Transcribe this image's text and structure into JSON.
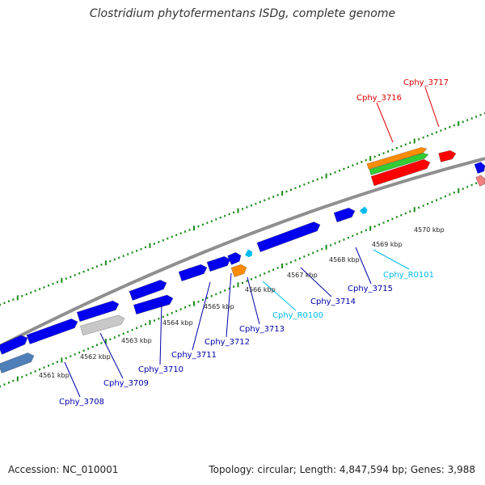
{
  "title": "Clostridium phytofermentans ISDg, complete genome",
  "footer": {
    "accession_label": "Accession: NC_010001",
    "stats_label": "Topology: circular; Length: 4,847,594 bp; Genes: 3,988"
  },
  "colors": {
    "backbone": "#8f8f8f",
    "tick": "#1a8a1a",
    "cds": "#0000ee",
    "cds_pale": "#4f7fb8",
    "pseudo": "#c8c8c8",
    "trna_rrna": "#ff8c00",
    "rna_label": "#00bbee",
    "red_feature": "#ff0000",
    "green_feature": "#33cc33",
    "pink_feature": "#f08080",
    "label_blue": "#0000aa",
    "label_red": "#dd0000"
  },
  "kbp_ticks": [
    "4561 kbp",
    "4562 kbp",
    "4563 kbp",
    "4564 kbp",
    "4565 kbp",
    "4566 kbp",
    "4567 kbp",
    "4568 kbp",
    "4569 kbp",
    "4570 kbp"
  ],
  "gene_labels": [
    {
      "text": "Cphy_3708",
      "color": "label_blue"
    },
    {
      "text": "Cphy_3709",
      "color": "label_blue"
    },
    {
      "text": "Cphy_3710",
      "color": "label_blue"
    },
    {
      "text": "Cphy_3711",
      "color": "label_blue"
    },
    {
      "text": "Cphy_3712",
      "color": "label_blue"
    },
    {
      "text": "Cphy_3713",
      "color": "label_blue"
    },
    {
      "text": "Cphy_R0100",
      "color": "rna_label"
    },
    {
      "text": "Cphy_3714",
      "color": "label_blue"
    },
    {
      "text": "Cphy_3715",
      "color": "label_blue"
    },
    {
      "text": "Cphy_R0101",
      "color": "rna_label"
    },
    {
      "text": "Cphy_3716",
      "color": "label_red"
    },
    {
      "text": "Cphy_3717",
      "color": "label_red"
    }
  ]
}
